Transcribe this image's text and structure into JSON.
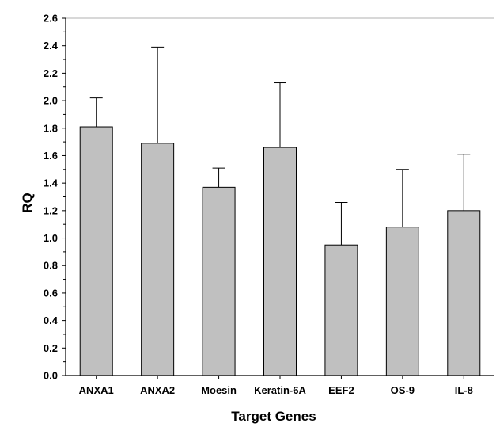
{
  "chart_data": {
    "type": "bar",
    "title": "",
    "xlabel": "Target Genes",
    "ylabel": "RQ",
    "ylim": [
      0,
      2.6
    ],
    "yticks": [
      "0.0",
      "0.2",
      "0.4",
      "0.6",
      "0.8",
      "1.0",
      "1.2",
      "1.4",
      "1.6",
      "1.8",
      "2.0",
      "2.2",
      "2.4",
      "2.6"
    ],
    "grid": false,
    "error_bars": "upper",
    "categories": [
      "ANXA1",
      "ANXA2",
      "Moesin",
      "Keratin-6A",
      "EEF2",
      "OS-9",
      "IL-8"
    ],
    "values": [
      1.81,
      1.69,
      1.37,
      1.66,
      0.95,
      1.08,
      1.2
    ],
    "errors": [
      0.21,
      0.7,
      0.14,
      0.47,
      0.31,
      0.42,
      0.41
    ],
    "bar_color": "#c0c0c0",
    "edge_color": "#000000"
  }
}
